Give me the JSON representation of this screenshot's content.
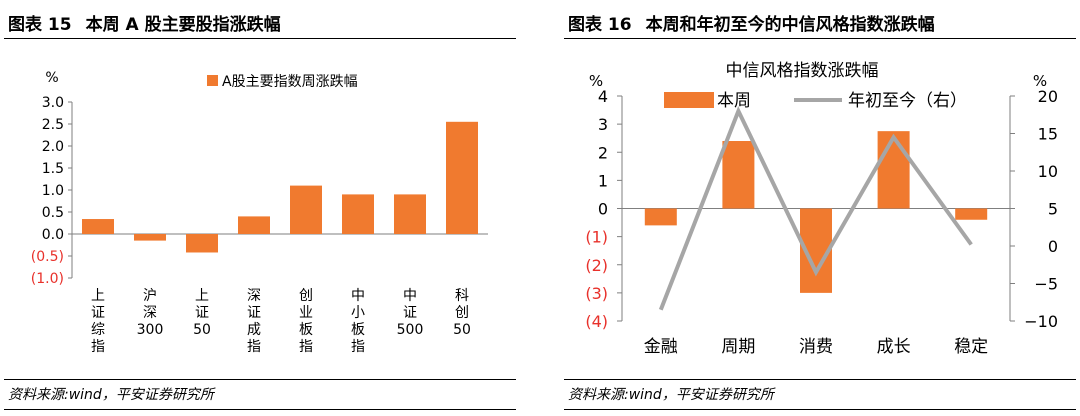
{
  "left": {
    "title_num": "图表 15",
    "title_text": "本周 A 股主要股指涨跌幅",
    "source": "资料来源:wind，平安证券研究所",
    "chart_data": {
      "type": "bar",
      "title": "",
      "legend": [
        "A股主要指数周涨跌幅"
      ],
      "legend_position": "top",
      "y_unit": "%",
      "ylim": [
        -1.0,
        3.0
      ],
      "yticks": [
        -1.0,
        -0.5,
        0.0,
        0.5,
        1.0,
        1.5,
        2.0,
        2.5,
        3.0
      ],
      "ytick_labels": [
        "(1.0)",
        "(0.5)",
        "0.0",
        "0.5",
        "1.0",
        "1.5",
        "2.0",
        "2.5",
        "3.0"
      ],
      "negative_label_color": "#e8312b",
      "categories": [
        "上证综指",
        "沪深300",
        "上证50",
        "深证成指",
        "创业板指",
        "中小板指",
        "中证500",
        "科创50"
      ],
      "series": [
        {
          "name": "A股主要指数周涨跌幅",
          "color": "#f07a2f",
          "values": [
            0.34,
            -0.15,
            -0.42,
            0.4,
            1.1,
            0.9,
            0.9,
            2.55
          ]
        }
      ],
      "grid": false
    }
  },
  "right": {
    "title_num": "图表 16",
    "title_text": "本周和年初至今的中信风格指数涨跌幅",
    "source": "资料来源:wind，平安证券研究所",
    "chart_data": {
      "type": "bar",
      "title": "中信风格指数涨跌幅",
      "legend_position": "top",
      "categories": [
        "金融",
        "周期",
        "消费",
        "成长",
        "稳定"
      ],
      "left_axis": {
        "unit": "%",
        "ylim": [
          -4,
          4
        ],
        "yticks": [
          -4,
          -3,
          -2,
          -1,
          0,
          1,
          2,
          3,
          4
        ],
        "ytick_labels": [
          "(4)",
          "(3)",
          "(2)",
          "(1)",
          "0",
          "1",
          "2",
          "3",
          "4"
        ],
        "negative_label_color": "#e8312b"
      },
      "right_axis": {
        "unit": "%",
        "ylim": [
          -10,
          20
        ],
        "yticks": [
          -10,
          -5,
          0,
          5,
          10,
          15,
          20
        ],
        "ytick_labels": [
          "−10",
          "−5",
          "0",
          "5",
          "10",
          "15",
          "20"
        ]
      },
      "series": [
        {
          "name": "本周",
          "kind": "bar",
          "axis": "left",
          "color": "#f07a2f",
          "values": [
            -0.6,
            2.4,
            -3.0,
            2.75,
            -0.4
          ]
        },
        {
          "name": "年初至今（右）",
          "kind": "line",
          "axis": "right",
          "color": "#a6a6a6",
          "values": [
            -8.5,
            18.0,
            -3.5,
            14.5,
            0.2
          ]
        }
      ],
      "grid": false
    }
  }
}
